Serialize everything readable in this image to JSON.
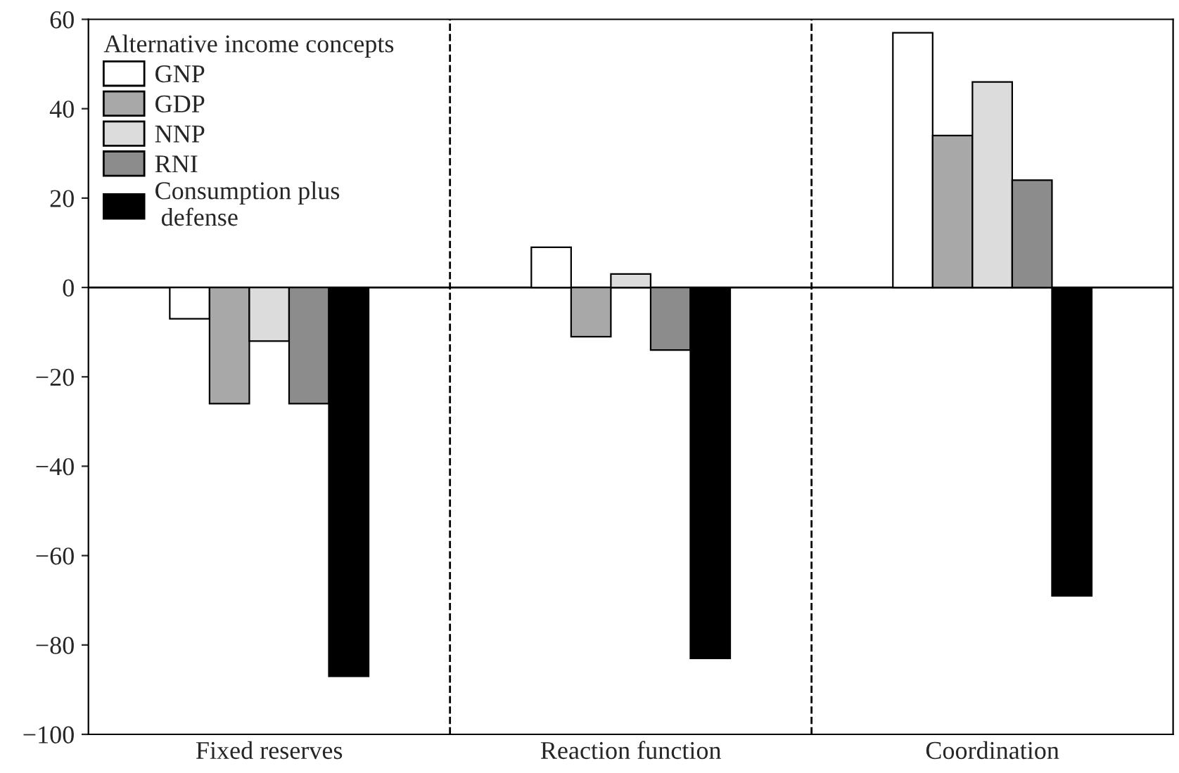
{
  "chart_data": {
    "type": "bar",
    "categories": [
      "Fixed reserves",
      "Reaction function",
      "Coordination"
    ],
    "series": [
      {
        "name": "GNP",
        "color": "#ffffff",
        "values": [
          -7,
          9,
          57
        ]
      },
      {
        "name": "GDP",
        "color": "#a8a8a8",
        "values": [
          -26,
          -11,
          34
        ]
      },
      {
        "name": "NNP",
        "color": "#dcdcdc",
        "values": [
          -12,
          3,
          46
        ]
      },
      {
        "name": "RNI",
        "color": "#8c8c8c",
        "values": [
          -26,
          -14,
          24
        ]
      },
      {
        "name": "Consumption plus\n defense",
        "color": "#000000",
        "values": [
          -87,
          -83,
          -69
        ]
      }
    ],
    "legend_title": "Alternative income concepts",
    "legend": "top left",
    "ylim": [
      -100,
      60
    ],
    "yticks": [
      -100,
      -80,
      -60,
      -40,
      -20,
      0,
      20,
      40,
      60
    ],
    "ref_lines": [
      {
        "axis": "y",
        "value": 0,
        "color": "#000000",
        "line_style": "solid"
      }
    ],
    "grid": false
  }
}
